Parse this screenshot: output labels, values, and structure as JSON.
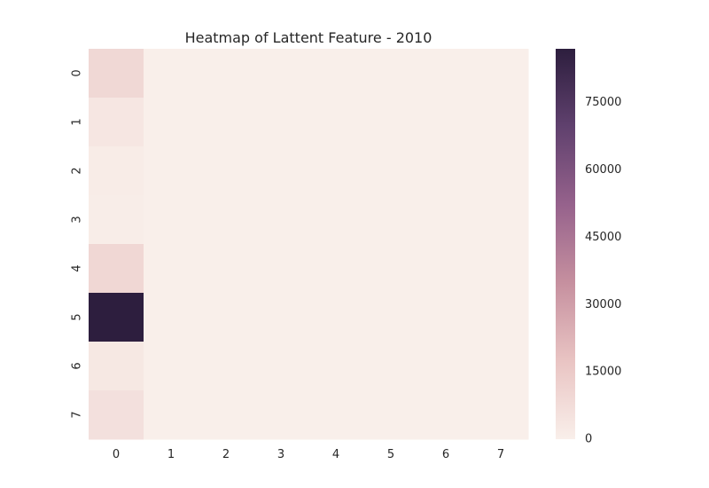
{
  "chart_data": {
    "type": "heatmap",
    "title": "Heatmap of Lattent Feature - 2010",
    "xlabel": "",
    "ylabel": "",
    "x_categories": [
      "0",
      "1",
      "2",
      "3",
      "4",
      "5",
      "6",
      "7"
    ],
    "y_categories": [
      "0",
      "1",
      "2",
      "3",
      "4",
      "5",
      "6",
      "7"
    ],
    "values": [
      [
        9500,
        0,
        0,
        0,
        0,
        0,
        0,
        0
      ],
      [
        3500,
        0,
        0,
        0,
        0,
        0,
        0,
        0
      ],
      [
        1200,
        0,
        0,
        0,
        0,
        0,
        0,
        0
      ],
      [
        1000,
        0,
        0,
        0,
        0,
        0,
        0,
        0
      ],
      [
        9800,
        0,
        0,
        0,
        0,
        0,
        0,
        0
      ],
      [
        87000,
        0,
        0,
        0,
        0,
        0,
        0,
        0
      ],
      [
        3000,
        0,
        0,
        0,
        0,
        0,
        0,
        0
      ],
      [
        6000,
        0,
        0,
        0,
        0,
        0,
        0,
        0
      ]
    ],
    "colorbar": {
      "min": 0,
      "max": 87000,
      "ticks": [
        0,
        15000,
        30000,
        45000,
        60000,
        75000
      ]
    },
    "colormap": [
      "#f9efea",
      "#e9c4c3",
      "#c6909f",
      "#96628c",
      "#60416e",
      "#2d1e3e"
    ],
    "grid": false
  }
}
